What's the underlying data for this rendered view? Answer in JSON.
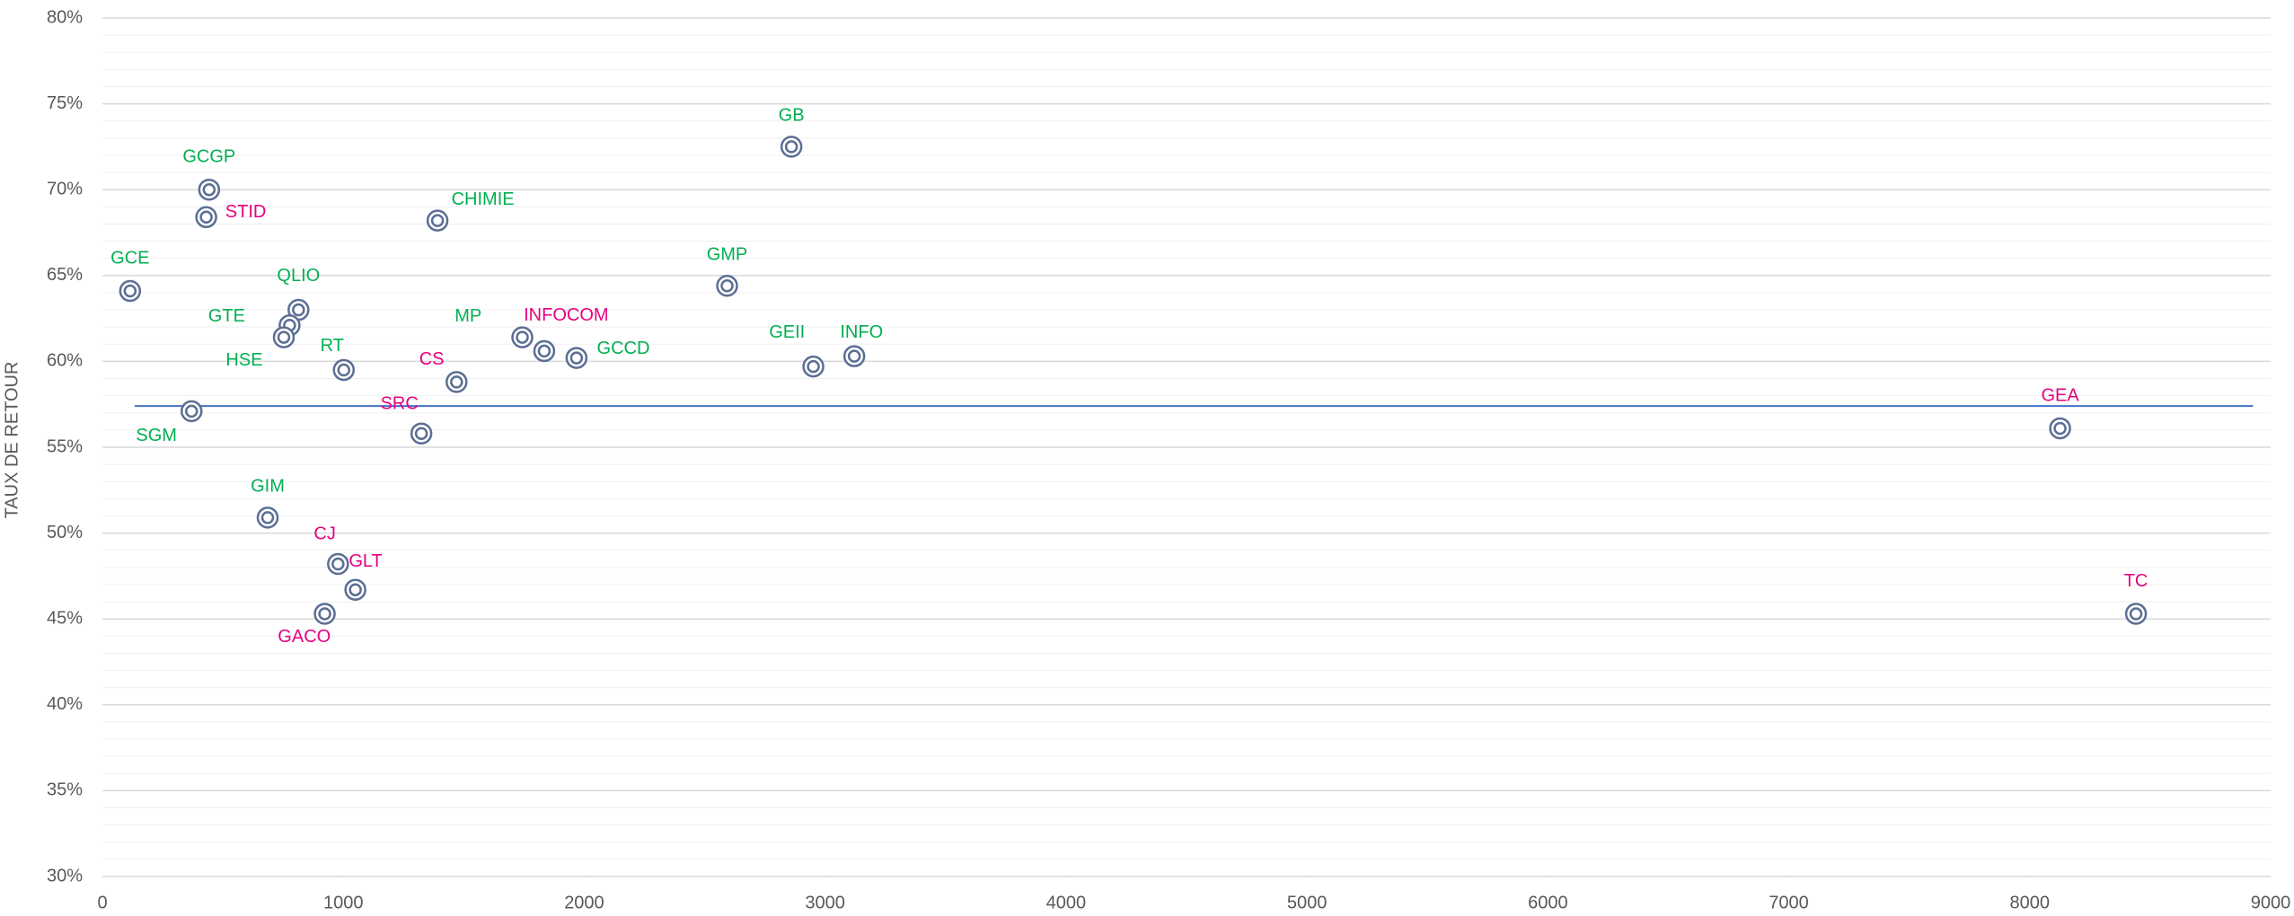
{
  "chart_data": {
    "type": "scatter",
    "y_axis_label": "TAUX DE RETOUR",
    "xlim": [
      0,
      9000
    ],
    "xticks": [
      0,
      1000,
      2000,
      3000,
      4000,
      5000,
      6000,
      7000,
      8000,
      9000
    ],
    "ylim": [
      30,
      80
    ],
    "yticks": [
      {
        "value": 30,
        "label": "30%"
      },
      {
        "value": 35,
        "label": "35%"
      },
      {
        "value": 40,
        "label": "40%"
      },
      {
        "value": 45,
        "label": "45%"
      },
      {
        "value": 50,
        "label": "50%"
      },
      {
        "value": 55,
        "label": "55%"
      },
      {
        "value": 60,
        "label": "60%"
      },
      {
        "value": 65,
        "label": "65%"
      },
      {
        "value": 70,
        "label": "70%"
      },
      {
        "value": 75,
        "label": "75%"
      },
      {
        "value": 80,
        "label": "80%"
      }
    ],
    "grid": true,
    "minor_grid": true,
    "series": [
      {
        "color": "#5b6e94",
        "labels": [
          "GCGP",
          "STID",
          "GCE",
          "QLIO",
          "GTE",
          "HSE",
          "RT",
          "SGM",
          "CHIMIE",
          "GB",
          "GMP",
          "MP",
          "INFOCOM",
          "GCCD",
          "CS",
          "SRC",
          "GEII",
          "INFO",
          "GEA",
          "TC",
          "GIM",
          "CJ",
          "GLT",
          "GACO"
        ],
        "label_colors": [
          "#00b050",
          "#e6007e",
          "#00b050",
          "#00b050",
          "#00b050",
          "#00b050",
          "#00b050",
          "#00b050",
          "#00b050",
          "#00b050",
          "#00b050",
          "#00b050",
          "#e6007e",
          "#00b050",
          "#e6007e",
          "#e6007e",
          "#00b050",
          "#00b050",
          "#e6007e",
          "#e6007e",
          "#00b050",
          "#e6007e",
          "#e6007e",
          "#e6007e"
        ],
        "x": [
          443,
          431,
          115,
          814,
          777,
          753,
          1002,
          370,
          1391,
          2860,
          2593,
          1743,
          1834,
          1968,
          1470,
          1324,
          2951,
          3121,
          8126,
          8441,
          686,
          978,
          1050,
          923
        ],
        "values": [
          70.0,
          68.4,
          64.1,
          63.0,
          62.1,
          61.4,
          59.5,
          57.1,
          68.2,
          72.5,
          64.4,
          61.4,
          60.6,
          60.2,
          58.8,
          55.8,
          59.7,
          60.3,
          56.1,
          45.3,
          50.9,
          48.2,
          46.7,
          45.3
        ]
      }
    ],
    "reference_line": {
      "color": "#4472c4",
      "x": [
        134,
        8927
      ],
      "values": [
        57.4,
        57.4
      ]
    }
  }
}
